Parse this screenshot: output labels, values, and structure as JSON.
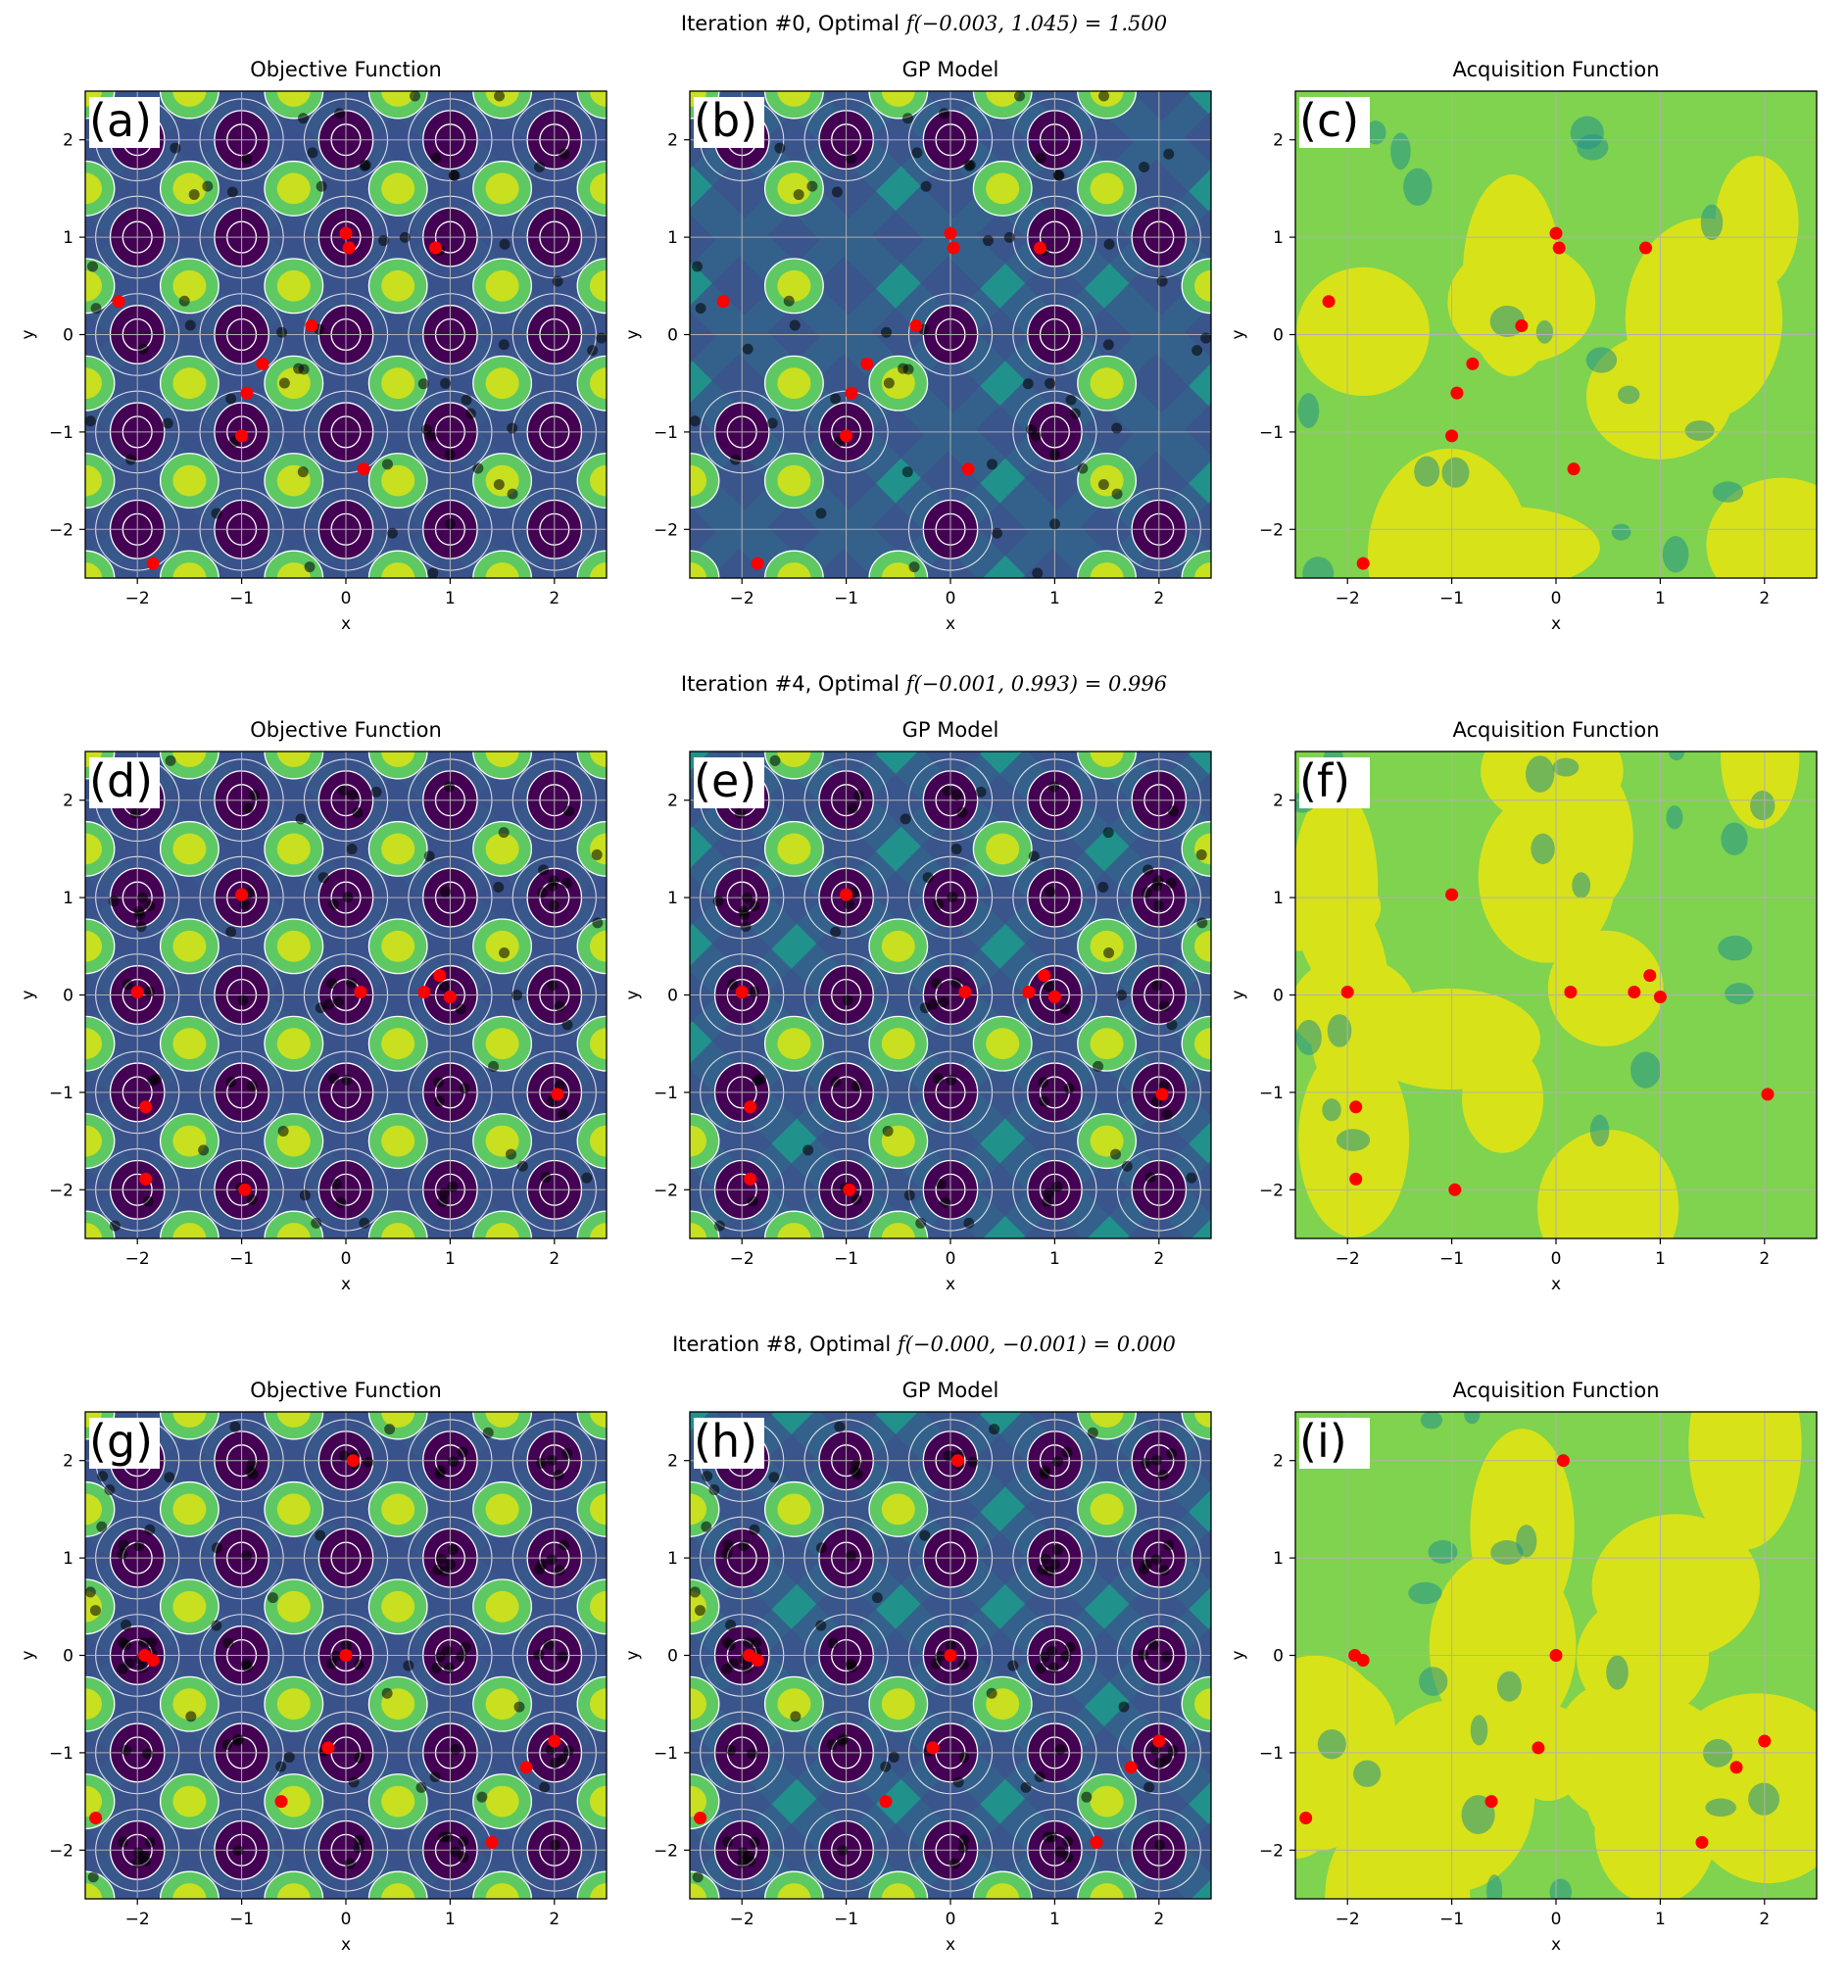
{
  "rows": [
    {
      "title_prefix": "Iteration #0, Optimal ",
      "title_formula": "f(−0.003, 1.045) = 1.500",
      "red": [
        [
          -2.18,
          0.34
        ],
        [
          -1.85,
          -2.35
        ],
        [
          -1.0,
          -1.04
        ],
        [
          -0.95,
          -0.6
        ],
        [
          -0.8,
          -0.3
        ],
        [
          -0.33,
          0.09
        ],
        [
          0.0,
          1.04
        ],
        [
          0.03,
          0.89
        ],
        [
          0.86,
          0.89
        ],
        [
          0.17,
          -1.38
        ]
      ]
    },
    {
      "title_prefix": "Iteration #4, Optimal ",
      "title_formula": "f(−0.001, 0.993) = 0.996",
      "red": [
        [
          -1.0,
          1.03
        ],
        [
          -2.0,
          0.03
        ],
        [
          -1.92,
          -1.15
        ],
        [
          -1.92,
          -1.89
        ],
        [
          -0.97,
          -2.0
        ],
        [
          0.14,
          0.03
        ],
        [
          0.75,
          0.03
        ],
        [
          0.9,
          0.2
        ],
        [
          1.0,
          -0.02
        ],
        [
          2.03,
          -1.02
        ]
      ]
    },
    {
      "title_prefix": "Iteration #8, Optimal ",
      "title_formula": "f(−0.000, −0.001) = 0.000",
      "red": [
        [
          0.07,
          2.0
        ],
        [
          -1.93,
          0.0
        ],
        [
          -1.85,
          -0.05
        ],
        [
          0.0,
          0.0
        ],
        [
          -0.17,
          -0.95
        ],
        [
          -0.62,
          -1.5
        ],
        [
          -2.4,
          -1.67
        ],
        [
          2.0,
          -0.88
        ],
        [
          1.73,
          -1.15
        ],
        [
          1.4,
          -1.92
        ]
      ]
    }
  ],
  "panel_titles": [
    "Objective Function",
    "GP Model",
    "Acquisition Function"
  ],
  "panel_letters": [
    [
      "(a)",
      "(b)",
      "(c)"
    ],
    [
      "(d)",
      "(e)",
      "(f)"
    ],
    [
      "(g)",
      "(h)",
      "(i)"
    ]
  ],
  "colors": {
    "dark": "#440154",
    "blue": "#3b528b",
    "teal": "#21918c",
    "green": "#5ec962",
    "yellow": "#fde725",
    "lime": "#c8e020",
    "acq_green": "#7fd34e",
    "acq_yellow": "#d8e219",
    "red": "#ff0000"
  },
  "chart_data": [
    {
      "type": "heatmap",
      "title": "Objective Function",
      "xlabel": "x",
      "ylabel": "y",
      "xlim": [
        -2.5,
        2.5
      ],
      "ylim": [
        -2.5,
        2.5
      ],
      "xticks": [
        "−2",
        "−1",
        "0",
        "1",
        "2"
      ],
      "yticks": [
        "−2",
        "−1",
        "0",
        "1",
        "2"
      ],
      "grid": true,
      "note_series": [
        "contour of objective",
        "black: all sampled points",
        "red: new batch points"
      ]
    },
    {
      "type": "heatmap",
      "title": "GP Model",
      "xlabel": "x",
      "ylabel": "y",
      "xlim": [
        -2.5,
        2.5
      ],
      "ylim": [
        -2.5,
        2.5
      ],
      "grid": true
    },
    {
      "type": "heatmap",
      "title": "Acquisition Function",
      "xlabel": "x",
      "ylabel": "y",
      "xlim": [
        -2.5,
        2.5
      ],
      "ylim": [
        -2.5,
        2.5
      ],
      "grid": true
    }
  ]
}
